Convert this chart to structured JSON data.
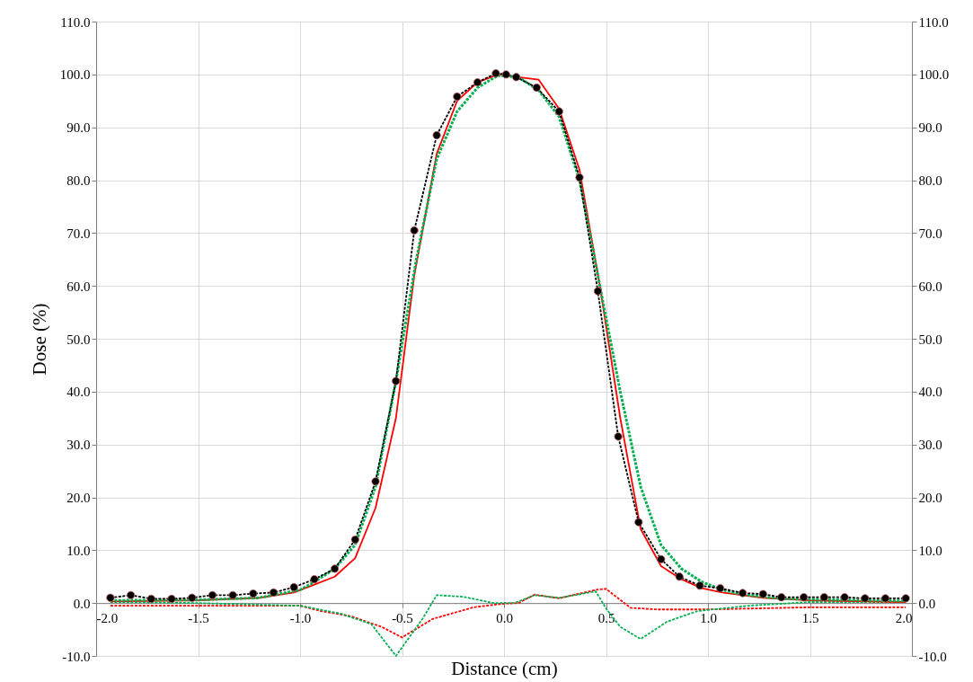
{
  "chart_data": {
    "type": "line",
    "xlabel": "Distance (cm)",
    "ylabel": "Dose (%)",
    "xlim": [
      -2,
      2
    ],
    "xticks": [
      {
        "value": -2,
        "label": "-2.0"
      },
      {
        "value": -1.5,
        "label": "-1.5"
      },
      {
        "value": -1,
        "label": "-1.0"
      },
      {
        "value": -0.5,
        "label": "-0.5"
      },
      {
        "value": 0,
        "label": "0.0"
      },
      {
        "value": 0.5,
        "label": "0.5"
      },
      {
        "value": 1,
        "label": "1.0"
      },
      {
        "value": 1.5,
        "label": "1.5"
      },
      {
        "value": 2,
        "label": "2.0"
      }
    ],
    "ylim": [
      -10,
      110
    ],
    "yticks": [
      {
        "value": -10,
        "label": "-10.0"
      },
      {
        "value": 0,
        "label": "0.0"
      },
      {
        "value": 10,
        "label": "10.0"
      },
      {
        "value": 20,
        "label": "20.0"
      },
      {
        "value": 30,
        "label": "30.0"
      },
      {
        "value": 40,
        "label": "40.0"
      },
      {
        "value": 50,
        "label": "50.0"
      },
      {
        "value": 60,
        "label": "60.0"
      },
      {
        "value": 70,
        "label": "70.0"
      },
      {
        "value": 80,
        "label": "80.0"
      },
      {
        "value": 90,
        "label": "90.0"
      },
      {
        "value": 100,
        "label": "100.0"
      },
      {
        "value": 110,
        "label": "110.0"
      }
    ],
    "y2lim": [
      -10,
      110
    ],
    "y2ticks": [
      {
        "value": -10,
        "label": "-10.0"
      },
      {
        "value": 0,
        "label": "0.0"
      },
      {
        "value": 10,
        "label": "10.0"
      },
      {
        "value": 20,
        "label": "20.0"
      },
      {
        "value": 30,
        "label": "30.0"
      },
      {
        "value": 40,
        "label": "40.0"
      },
      {
        "value": 50,
        "label": "50.0"
      },
      {
        "value": 60,
        "label": "60.0"
      },
      {
        "value": 70,
        "label": "70.0"
      },
      {
        "value": 80,
        "label": "80.0"
      },
      {
        "value": 90,
        "label": "90.0"
      },
      {
        "value": 100,
        "label": "100.0"
      },
      {
        "value": 110,
        "label": "110.0"
      }
    ],
    "grid": true,
    "series": [
      {
        "color": "#ff0000",
        "marker": "none",
        "line_style": "dashed",
        "x": [
          -1.93,
          -1.5,
          -1.0,
          -0.9,
          -0.75,
          -0.6,
          -0.5,
          -0.35,
          -0.15,
          0.0,
          0.07,
          0.15,
          0.27,
          0.45,
          0.5,
          0.62,
          0.75,
          1.0,
          1.5,
          1.97
        ],
        "values": [
          -0.5,
          -0.5,
          -0.5,
          -1.5,
          -2.5,
          -4.5,
          -6.5,
          -3,
          -0.8,
          -0.1,
          0.0,
          1.6,
          0.9,
          2.5,
          2.7,
          -0.9,
          -1.2,
          -1.2,
          -0.8,
          -0.8
        ]
      },
      {
        "color": "#00b050",
        "marker": "none",
        "line_style": "dashed",
        "x": [
          -1.93,
          -1.5,
          -1.0,
          -0.8,
          -0.65,
          -0.53,
          -0.4,
          -0.33,
          -0.2,
          -0.05,
          0.05,
          0.15,
          0.27,
          0.45,
          0.5,
          0.57,
          0.67,
          0.8,
          0.95,
          1.2,
          1.5,
          1.97
        ],
        "values": [
          0.2,
          0.0,
          -0.5,
          -2,
          -4,
          -10,
          -3,
          1.5,
          1.2,
          0,
          0,
          1.5,
          1,
          2.2,
          -1,
          -4.5,
          -6.8,
          -3.5,
          -1.5,
          -0.5,
          0.2,
          0.2
        ]
      },
      {
        "color": "#ff0000",
        "marker": "none",
        "line_style": "solid",
        "x": [
          -1.93,
          -1.5,
          -1.2,
          -1.03,
          -0.93,
          -0.83,
          -0.73,
          -0.63,
          -0.53,
          -0.44,
          -0.33,
          -0.23,
          -0.13,
          -0.03,
          0.07,
          0.17,
          0.27,
          0.37,
          0.47,
          0.57,
          0.67,
          0.77,
          0.87,
          0.97,
          1.07,
          1.17,
          1.27,
          1.5,
          1.97
        ],
        "values": [
          0.3,
          0.5,
          1.0,
          2,
          3.5,
          5,
          8.5,
          18,
          35,
          62,
          85,
          95,
          98.5,
          100,
          99.5,
          99,
          93.5,
          82,
          60,
          35,
          14,
          7,
          4.5,
          2.8,
          2,
          1.5,
          1.0,
          0.5,
          0.2
        ]
      },
      {
        "color": "#00b050",
        "marker": "none",
        "line_style": "dashed",
        "x": [
          -1.93,
          -1.5,
          -1.2,
          -1.0,
          -0.93,
          -0.83,
          -0.73,
          -0.63,
          -0.53,
          -0.43,
          -0.33,
          -0.23,
          -0.13,
          -0.03,
          0.07,
          0.17,
          0.27,
          0.37,
          0.47,
          0.57,
          0.67,
          0.77,
          0.87,
          0.97,
          1.07,
          1.17,
          1.37,
          1.97
        ],
        "values": [
          0.5,
          0.6,
          1.0,
          2.5,
          4,
          6.5,
          11,
          22,
          42,
          65,
          84,
          93,
          97.5,
          99.8,
          99.5,
          97,
          92,
          80,
          60,
          40,
          22,
          11,
          6.5,
          4,
          2.5,
          1.6,
          0.8,
          0.4
        ]
      },
      {
        "color": "#000000",
        "marker": "circle",
        "line_style": "dashed",
        "x": [
          -1.93,
          -1.83,
          -1.73,
          -1.63,
          -1.53,
          -1.43,
          -1.33,
          -1.23,
          -1.13,
          -1.03,
          -0.93,
          -0.83,
          -0.73,
          -0.63,
          -0.53,
          -0.44,
          -0.33,
          -0.23,
          -0.13,
          -0.04,
          0.01,
          0.06,
          0.16,
          0.27,
          0.37,
          0.46,
          0.56,
          0.66,
          0.77,
          0.86,
          0.96,
          1.06,
          1.17,
          1.27,
          1.36,
          1.47,
          1.57,
          1.67,
          1.77,
          1.87,
          1.97
        ],
        "values": [
          1.0,
          1.5,
          0.8,
          0.8,
          1.0,
          1.5,
          1.5,
          1.8,
          2.0,
          3.0,
          4.5,
          6.5,
          12,
          23,
          42,
          70.5,
          88.5,
          95.8,
          98.5,
          100.2,
          100,
          99.5,
          97.5,
          93,
          80.5,
          59,
          31.5,
          15.3,
          8.3,
          5,
          3.3,
          2.8,
          1.9,
          1.7,
          1.1,
          1.1,
          1.1,
          1.1,
          0.9,
          0.9,
          0.9
        ]
      }
    ]
  }
}
